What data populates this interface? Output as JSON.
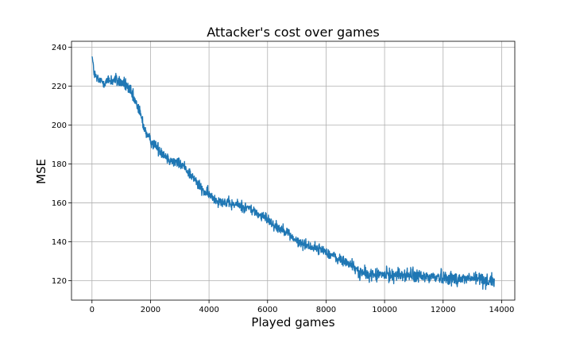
{
  "chart_data": {
    "type": "line",
    "title": "Attacker's cost over games",
    "xlabel": "Played games",
    "ylabel": "MSE",
    "xlim": [
      -700,
      14450
    ],
    "ylim": [
      110,
      243
    ],
    "xticks": [
      0,
      2000,
      4000,
      6000,
      8000,
      10000,
      12000,
      14000
    ],
    "yticks": [
      120,
      140,
      160,
      180,
      200,
      220,
      240
    ],
    "grid": true,
    "line_color": "#1f77b4",
    "series": [
      {
        "trend": [
          [
            0,
            236
          ],
          [
            30,
            232
          ],
          [
            80,
            226
          ],
          [
            200,
            223
          ],
          [
            400,
            222
          ],
          [
            600,
            223
          ],
          [
            800,
            223
          ],
          [
            1000,
            222
          ],
          [
            1200,
            220
          ],
          [
            1400,
            214
          ],
          [
            1600,
            208
          ],
          [
            1700,
            203
          ],
          [
            1800,
            198
          ],
          [
            1900,
            194
          ],
          [
            2000,
            192
          ],
          [
            2200,
            189
          ],
          [
            2400,
            186
          ],
          [
            2600,
            183
          ],
          [
            2800,
            181
          ],
          [
            3000,
            180
          ],
          [
            3200,
            178
          ],
          [
            3400,
            174
          ],
          [
            3600,
            170
          ],
          [
            3800,
            166
          ],
          [
            4000,
            164
          ],
          [
            4200,
            162
          ],
          [
            4400,
            161
          ],
          [
            4600,
            160
          ],
          [
            4800,
            159
          ],
          [
            5000,
            159
          ],
          [
            5200,
            158
          ],
          [
            5400,
            157
          ],
          [
            5600,
            155
          ],
          [
            5800,
            153
          ],
          [
            6000,
            152
          ],
          [
            6200,
            149
          ],
          [
            6400,
            147
          ],
          [
            6600,
            146
          ],
          [
            6800,
            143
          ],
          [
            7000,
            140
          ],
          [
            7200,
            139
          ],
          [
            7400,
            138
          ],
          [
            7600,
            137
          ],
          [
            7800,
            136
          ],
          [
            8000,
            135
          ],
          [
            8200,
            133
          ],
          [
            8400,
            131
          ],
          [
            8600,
            130
          ],
          [
            8800,
            129
          ],
          [
            9000,
            126
          ],
          [
            9200,
            124
          ],
          [
            9400,
            123
          ],
          [
            9600,
            123
          ],
          [
            9800,
            123
          ],
          [
            10000,
            123
          ],
          [
            10400,
            123
          ],
          [
            10800,
            123
          ],
          [
            11200,
            122
          ],
          [
            11600,
            122
          ],
          [
            12000,
            122
          ],
          [
            12400,
            121
          ],
          [
            12800,
            121
          ],
          [
            13200,
            121
          ],
          [
            13600,
            120
          ],
          [
            13750,
            120
          ]
        ],
        "noise_amplitude": [
          [
            0,
            1
          ],
          [
            100,
            2.6
          ],
          [
            1500,
            3
          ],
          [
            2000,
            2.6
          ],
          [
            5000,
            2.4
          ],
          [
            8000,
            2.2
          ],
          [
            9000,
            2.8
          ],
          [
            10000,
            3
          ],
          [
            13750,
            3.2
          ]
        ]
      }
    ]
  }
}
